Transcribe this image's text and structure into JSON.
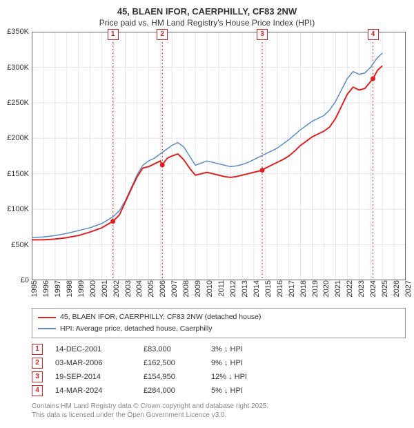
{
  "title_line1": "45, BLAEN IFOR, CAERPHILLY, CF83 2NW",
  "title_line2": "Price paid vs. HM Land Registry's House Price Index (HPI)",
  "chart": {
    "type": "line",
    "background_color": "#ffffff",
    "border_color": "#666666",
    "grid_color": "#e6e6e6",
    "x_min": 1995,
    "x_max": 2027,
    "x_ticks": [
      1995,
      1996,
      1997,
      1998,
      1999,
      2000,
      2001,
      2002,
      2003,
      2004,
      2005,
      2006,
      2007,
      2008,
      2009,
      2010,
      2011,
      2012,
      2013,
      2014,
      2015,
      2016,
      2017,
      2018,
      2019,
      2020,
      2021,
      2022,
      2023,
      2024,
      2025,
      2026,
      2027
    ],
    "y_min": 0,
    "y_max": 350000,
    "y_ticks": [
      0,
      50000,
      100000,
      150000,
      200000,
      250000,
      300000,
      350000
    ],
    "y_tick_labels": [
      "£0",
      "£50K",
      "£100K",
      "£150K",
      "£200K",
      "£250K",
      "£300K",
      "£350K"
    ],
    "tick_fontsize": 11,
    "series": [
      {
        "name": "paid",
        "color": "#e02020",
        "width": 2,
        "points": [
          [
            1995.0,
            57000
          ],
          [
            1996.0,
            57000
          ],
          [
            1997.0,
            58000
          ],
          [
            1998.0,
            60000
          ],
          [
            1999.0,
            63000
          ],
          [
            2000.0,
            68000
          ],
          [
            2001.0,
            74000
          ],
          [
            2001.95,
            83000
          ],
          [
            2002.5,
            92000
          ],
          [
            2003.0,
            110000
          ],
          [
            2003.5,
            128000
          ],
          [
            2004.0,
            145000
          ],
          [
            2004.5,
            158000
          ],
          [
            2005.0,
            160000
          ],
          [
            2005.5,
            164000
          ],
          [
            2006.0,
            168000
          ],
          [
            2006.17,
            162500
          ],
          [
            2006.6,
            172000
          ],
          [
            2007.0,
            175000
          ],
          [
            2007.5,
            178000
          ],
          [
            2008.0,
            170000
          ],
          [
            2008.5,
            158000
          ],
          [
            2009.0,
            148000
          ],
          [
            2009.5,
            150000
          ],
          [
            2010.0,
            152000
          ],
          [
            2010.5,
            150000
          ],
          [
            2011.0,
            148000
          ],
          [
            2011.5,
            146000
          ],
          [
            2012.0,
            145000
          ],
          [
            2012.5,
            146000
          ],
          [
            2013.0,
            148000
          ],
          [
            2013.5,
            150000
          ],
          [
            2014.0,
            152000
          ],
          [
            2014.5,
            154000
          ],
          [
            2014.72,
            154950
          ],
          [
            2015.0,
            158000
          ],
          [
            2015.5,
            162000
          ],
          [
            2016.0,
            166000
          ],
          [
            2016.5,
            170000
          ],
          [
            2017.0,
            175000
          ],
          [
            2017.5,
            182000
          ],
          [
            2018.0,
            190000
          ],
          [
            2018.5,
            196000
          ],
          [
            2019.0,
            202000
          ],
          [
            2019.5,
            206000
          ],
          [
            2020.0,
            210000
          ],
          [
            2020.5,
            216000
          ],
          [
            2021.0,
            228000
          ],
          [
            2021.5,
            245000
          ],
          [
            2022.0,
            262000
          ],
          [
            2022.5,
            272000
          ],
          [
            2023.0,
            268000
          ],
          [
            2023.5,
            270000
          ],
          [
            2024.0,
            280000
          ],
          [
            2024.2,
            284000
          ],
          [
            2024.6,
            296000
          ],
          [
            2025.0,
            302000
          ]
        ]
      },
      {
        "name": "hpi",
        "color": "#5b8bc9",
        "width": 1.5,
        "points": [
          [
            1995.0,
            60000
          ],
          [
            1996.0,
            61000
          ],
          [
            1997.0,
            63000
          ],
          [
            1998.0,
            66000
          ],
          [
            1999.0,
            70000
          ],
          [
            2000.0,
            74000
          ],
          [
            2001.0,
            80000
          ],
          [
            2002.0,
            90000
          ],
          [
            2002.5,
            98000
          ],
          [
            2003.0,
            112000
          ],
          [
            2003.5,
            130000
          ],
          [
            2004.0,
            148000
          ],
          [
            2004.5,
            162000
          ],
          [
            2005.0,
            168000
          ],
          [
            2005.5,
            172000
          ],
          [
            2006.0,
            178000
          ],
          [
            2006.5,
            184000
          ],
          [
            2007.0,
            190000
          ],
          [
            2007.5,
            194000
          ],
          [
            2008.0,
            188000
          ],
          [
            2008.5,
            175000
          ],
          [
            2009.0,
            162000
          ],
          [
            2009.5,
            165000
          ],
          [
            2010.0,
            168000
          ],
          [
            2010.5,
            166000
          ],
          [
            2011.0,
            164000
          ],
          [
            2011.5,
            162000
          ],
          [
            2012.0,
            160000
          ],
          [
            2012.5,
            161000
          ],
          [
            2013.0,
            163000
          ],
          [
            2013.5,
            166000
          ],
          [
            2014.0,
            170000
          ],
          [
            2014.5,
            174000
          ],
          [
            2015.0,
            178000
          ],
          [
            2015.5,
            182000
          ],
          [
            2016.0,
            186000
          ],
          [
            2016.5,
            192000
          ],
          [
            2017.0,
            198000
          ],
          [
            2017.5,
            205000
          ],
          [
            2018.0,
            212000
          ],
          [
            2018.5,
            218000
          ],
          [
            2019.0,
            224000
          ],
          [
            2019.5,
            228000
          ],
          [
            2020.0,
            232000
          ],
          [
            2020.5,
            240000
          ],
          [
            2021.0,
            252000
          ],
          [
            2021.5,
            268000
          ],
          [
            2022.0,
            284000
          ],
          [
            2022.5,
            294000
          ],
          [
            2023.0,
            290000
          ],
          [
            2023.5,
            292000
          ],
          [
            2024.0,
            300000
          ],
          [
            2024.5,
            312000
          ],
          [
            2025.0,
            320000
          ]
        ]
      }
    ],
    "sale_markers": [
      {
        "n": "1",
        "x": 2001.95,
        "y": 83000
      },
      {
        "n": "2",
        "x": 2006.17,
        "y": 162500
      },
      {
        "n": "3",
        "x": 2014.72,
        "y": 154950
      },
      {
        "n": "4",
        "x": 2024.2,
        "y": 284000
      }
    ],
    "marker_dot_color": "#e02020"
  },
  "legend": {
    "items": [
      {
        "color": "#e02020",
        "label": "45, BLAEN IFOR, CAERPHILLY, CF83 2NW (detached house)"
      },
      {
        "color": "#5b8bc9",
        "label": "HPI: Average price, detached house, Caerphilly"
      }
    ]
  },
  "sales": [
    {
      "n": "1",
      "date": "14-DEC-2001",
      "price": "£83,000",
      "delta": "3% ↓ HPI"
    },
    {
      "n": "2",
      "date": "03-MAR-2006",
      "price": "£162,500",
      "delta": "9% ↓ HPI"
    },
    {
      "n": "3",
      "date": "19-SEP-2014",
      "price": "£154,950",
      "delta": "12% ↓ HPI"
    },
    {
      "n": "4",
      "date": "14-MAR-2024",
      "price": "£284,000",
      "delta": "5% ↓ HPI"
    }
  ],
  "footer_line1": "Contains HM Land Registry data © Crown copyright and database right 2025.",
  "footer_line2": "This data is licensed under the Open Government Licence v3.0."
}
